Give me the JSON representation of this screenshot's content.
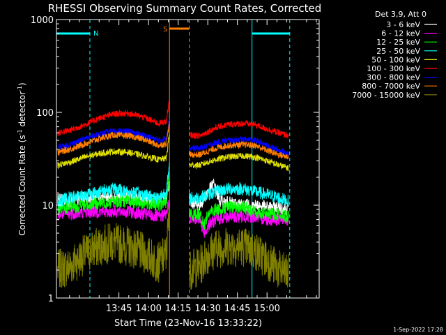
{
  "chart_data": {
    "type": "line",
    "title": "RHESSI Observing Summary Count Rates, Corrected",
    "xlabel": "Start Time (23-Nov-16 13:33:22)",
    "ylabel_main": "Corrected Count Rate (s",
    "ylabel_sup1": "-1",
    "ylabel_mid": " detector",
    "ylabel_sup2": "-1",
    "ylabel_end": ")",
    "yscale": "log",
    "ylim": [
      1,
      1000
    ],
    "xlim_minutes": [
      793.37,
      926.4
    ],
    "y_ticks": [
      {
        "value": 1,
        "label": "1"
      },
      {
        "value": 10,
        "label": "10"
      },
      {
        "value": 100,
        "label": "100"
      },
      {
        "value": 1000,
        "label": "1000"
      }
    ],
    "x_ticks": [
      {
        "minute": 825,
        "label": "13:45"
      },
      {
        "minute": 840,
        "label": "14:00"
      },
      {
        "minute": 855,
        "label": "14:15"
      },
      {
        "minute": 870,
        "label": "14:30"
      },
      {
        "minute": 885,
        "label": "14:45"
      },
      {
        "minute": 900,
        "label": "15:00"
      }
    ],
    "legend_header": "Det 3,9, Att 0",
    "legend_placement": "top-right",
    "gaps_minutes": [
      [
        850.6,
        860.6
      ]
    ],
    "series": [
      {
        "name": "3 - 6 keV",
        "color": "#ffffff",
        "points": [
          [
            794,
            12
          ],
          [
            800,
            11
          ],
          [
            808,
            12
          ],
          [
            815,
            12.5
          ],
          [
            822,
            12.5
          ],
          [
            830,
            12
          ],
          [
            838,
            11.5
          ],
          [
            845,
            11
          ],
          [
            849,
            12
          ],
          [
            851,
            18
          ],
          [
            861,
            11
          ],
          [
            866,
            10
          ],
          [
            870,
            14
          ],
          [
            873,
            17
          ],
          [
            876,
            11
          ],
          [
            882,
            10.5
          ],
          [
            888,
            10
          ],
          [
            894,
            10
          ],
          [
            900,
            9.5
          ],
          [
            906,
            9.5
          ],
          [
            911,
            9
          ]
        ]
      },
      {
        "name": "6 - 12 keV",
        "color": "#ff00ff",
        "points": [
          [
            794,
            8
          ],
          [
            800,
            8
          ],
          [
            808,
            8.5
          ],
          [
            815,
            8.5
          ],
          [
            822,
            8.5
          ],
          [
            830,
            8.5
          ],
          [
            838,
            8
          ],
          [
            845,
            7.5
          ],
          [
            849,
            8
          ],
          [
            851,
            13
          ],
          [
            861,
            7.5
          ],
          [
            866,
            7
          ],
          [
            868,
            4.8
          ],
          [
            870,
            6
          ],
          [
            874,
            7
          ],
          [
            880,
            7.5
          ],
          [
            888,
            7.5
          ],
          [
            894,
            7.5
          ],
          [
            900,
            7
          ],
          [
            906,
            7
          ],
          [
            911,
            7
          ]
        ]
      },
      {
        "name": "12 - 25 keV",
        "color": "#00ff00",
        "points": [
          [
            794,
            9
          ],
          [
            800,
            9.5
          ],
          [
            808,
            10
          ],
          [
            815,
            10.5
          ],
          [
            822,
            11
          ],
          [
            830,
            11
          ],
          [
            838,
            10.5
          ],
          [
            845,
            10
          ],
          [
            849,
            11
          ],
          [
            851,
            25
          ],
          [
            861,
            8
          ],
          [
            866,
            8
          ],
          [
            868,
            6
          ],
          [
            870,
            8
          ],
          [
            874,
            9
          ],
          [
            880,
            9.5
          ],
          [
            888,
            9.5
          ],
          [
            894,
            8.5
          ],
          [
            900,
            8
          ],
          [
            906,
            8
          ],
          [
            911,
            7.5
          ]
        ]
      },
      {
        "name": "25 - 50 keV",
        "color": "#00ffff",
        "points": [
          [
            794,
            11
          ],
          [
            800,
            12
          ],
          [
            808,
            13
          ],
          [
            815,
            14
          ],
          [
            822,
            15
          ],
          [
            830,
            14
          ],
          [
            838,
            13
          ],
          [
            845,
            12
          ],
          [
            849,
            14
          ],
          [
            851,
            30
          ],
          [
            861,
            12
          ],
          [
            866,
            12
          ],
          [
            870,
            13
          ],
          [
            874,
            14
          ],
          [
            880,
            15
          ],
          [
            888,
            15
          ],
          [
            894,
            14
          ],
          [
            900,
            13
          ],
          [
            906,
            12
          ],
          [
            911,
            11
          ]
        ]
      },
      {
        "name": "50 - 100 keV",
        "color": "#e0e000",
        "points": [
          [
            794,
            27
          ],
          [
            800,
            29
          ],
          [
            808,
            33
          ],
          [
            815,
            36
          ],
          [
            822,
            38
          ],
          [
            830,
            37
          ],
          [
            838,
            34
          ],
          [
            845,
            31
          ],
          [
            849,
            32
          ],
          [
            851,
            70
          ],
          [
            861,
            27
          ],
          [
            866,
            27
          ],
          [
            870,
            29
          ],
          [
            874,
            31
          ],
          [
            880,
            33
          ],
          [
            888,
            34
          ],
          [
            894,
            33
          ],
          [
            900,
            30
          ],
          [
            906,
            27
          ],
          [
            911,
            25
          ]
        ]
      },
      {
        "name": "100 - 300 keV",
        "color": "#ff0000",
        "points": [
          [
            794,
            60
          ],
          [
            800,
            64
          ],
          [
            808,
            74
          ],
          [
            815,
            86
          ],
          [
            822,
            96
          ],
          [
            830,
            98
          ],
          [
            838,
            88
          ],
          [
            845,
            76
          ],
          [
            849,
            80
          ],
          [
            851,
            160
          ],
          [
            861,
            57
          ],
          [
            866,
            56
          ],
          [
            870,
            62
          ],
          [
            874,
            68
          ],
          [
            880,
            74
          ],
          [
            888,
            76
          ],
          [
            894,
            74
          ],
          [
            900,
            66
          ],
          [
            906,
            60
          ],
          [
            911,
            56
          ]
        ]
      },
      {
        "name": "300 - 800 keV",
        "color": "#0000ff",
        "points": [
          [
            794,
            42
          ],
          [
            800,
            45
          ],
          [
            808,
            52
          ],
          [
            815,
            58
          ],
          [
            822,
            63
          ],
          [
            830,
            62
          ],
          [
            838,
            56
          ],
          [
            845,
            50
          ],
          [
            849,
            52
          ],
          [
            851,
            100
          ],
          [
            861,
            41
          ],
          [
            866,
            41
          ],
          [
            870,
            44
          ],
          [
            874,
            47
          ],
          [
            880,
            50
          ],
          [
            888,
            51
          ],
          [
            894,
            50
          ],
          [
            900,
            44
          ],
          [
            906,
            39
          ],
          [
            911,
            36
          ]
        ]
      },
      {
        "name": "800 - 7000 keV",
        "color": "#ff8000",
        "points": [
          [
            794,
            37
          ],
          [
            800,
            40
          ],
          [
            808,
            46
          ],
          [
            815,
            52
          ],
          [
            822,
            57
          ],
          [
            830,
            56
          ],
          [
            838,
            51
          ],
          [
            845,
            44
          ],
          [
            849,
            46
          ],
          [
            851,
            90
          ],
          [
            861,
            35
          ],
          [
            866,
            35
          ],
          [
            870,
            38
          ],
          [
            874,
            41
          ],
          [
            880,
            44
          ],
          [
            888,
            45
          ],
          [
            894,
            44
          ],
          [
            900,
            39
          ],
          [
            906,
            35
          ],
          [
            911,
            33
          ]
        ]
      },
      {
        "name": "7000 - 15000 keV",
        "color": "#808000",
        "points": [
          [
            794,
            2
          ],
          [
            800,
            2.2
          ],
          [
            808,
            3
          ],
          [
            815,
            3.6
          ],
          [
            822,
            4
          ],
          [
            830,
            3.6
          ],
          [
            838,
            3
          ],
          [
            845,
            2.4
          ],
          [
            849,
            3
          ],
          [
            851,
            12
          ],
          [
            861,
            2
          ],
          [
            866,
            2.2
          ],
          [
            870,
            3
          ],
          [
            874,
            3.4
          ],
          [
            880,
            3.6
          ],
          [
            888,
            3.6
          ],
          [
            894,
            3.2
          ],
          [
            900,
            2.6
          ],
          [
            906,
            2
          ],
          [
            911,
            1.8
          ]
        ]
      }
    ],
    "annotations": [
      {
        "kind": "night",
        "label": "N",
        "start_minute": 793.37,
        "end_minute": 810.3,
        "color": "#00ffff"
      },
      {
        "kind": "night",
        "label": "",
        "start_minute": 892.4,
        "end_minute": 911.5,
        "color": "#00ffff"
      },
      {
        "kind": "saa",
        "label": "S",
        "start_minute": 850.6,
        "end_minute": 860.6,
        "color": "#ff8000"
      }
    ],
    "footer_date": "1-Sep-2022 17:28"
  }
}
